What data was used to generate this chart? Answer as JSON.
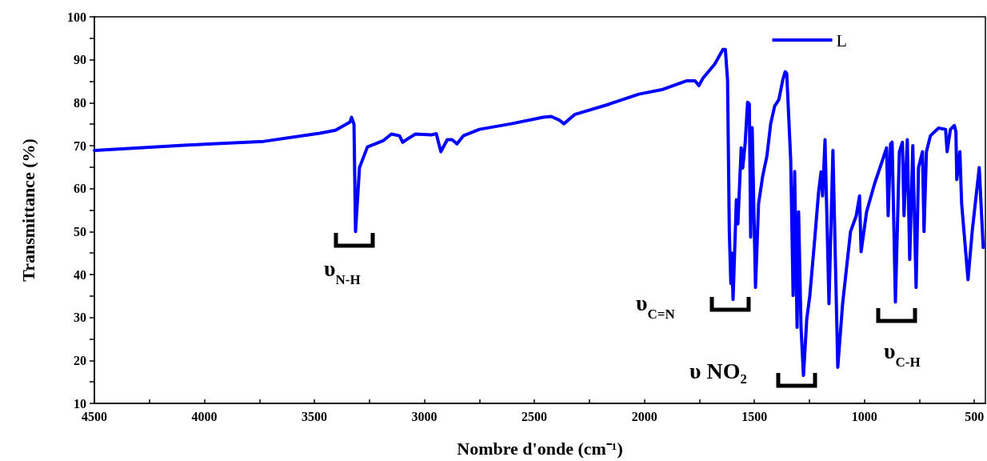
{
  "chart_data": {
    "type": "line",
    "xlabel": "Nombre d'onde (cm⁻¹)",
    "ylabel": "Transmittance (%)",
    "xlim": [
      4500,
      450
    ],
    "ylim": [
      10,
      100
    ],
    "xticks": [
      4500,
      {
        "value": 4250,
        "label": null
      },
      4000,
      {
        "value": 3750,
        "label": null
      },
      3500,
      {
        "value": 3250,
        "label": null
      },
      3000,
      {
        "value": 2750,
        "label": null
      },
      2500,
      {
        "value": 2250,
        "label": null
      },
      2000,
      {
        "value": 1750,
        "label": null
      },
      1500,
      {
        "value": 1250,
        "label": null
      },
      1000,
      {
        "value": 750,
        "label": null
      },
      500
    ],
    "yticks": [
      10,
      {
        "value": 15,
        "label": null
      },
      20,
      {
        "value": 25,
        "label": null
      },
      30,
      {
        "value": 35,
        "label": null
      },
      40,
      {
        "value": 45,
        "label": null
      },
      50,
      {
        "value": 55,
        "label": null
      },
      60,
      {
        "value": 65,
        "label": null
      },
      70,
      {
        "value": 75,
        "label": null
      },
      80,
      {
        "value": 85,
        "label": null
      },
      90,
      {
        "value": 95,
        "label": null
      },
      100
    ],
    "grid": false,
    "legend": "top right",
    "marker": "none",
    "line_style": "solid",
    "series": [
      {
        "name": "L",
        "color": "#0000ff",
        "x": [
          4500,
          4093,
          3730,
          3476,
          3404,
          3338,
          3331,
          3320,
          3313,
          3295,
          3259,
          3186,
          3150,
          3113,
          3099,
          3041,
          2968,
          2946,
          2925,
          2896,
          2874,
          2852,
          2823,
          2750,
          2605,
          2460,
          2424,
          2388,
          2366,
          2315,
          2170,
          2025,
          1916,
          1807,
          1770,
          1752,
          1734,
          1680,
          1643,
          1632,
          1622,
          1614,
          1607,
          1603,
          1597,
          1582,
          1575,
          1560,
          1553,
          1542,
          1531,
          1523,
          1517,
          1510,
          1495,
          1481,
          1462,
          1443,
          1426,
          1408,
          1389,
          1371,
          1360,
          1353,
          1335,
          1324,
          1317,
          1306,
          1299,
          1288,
          1277,
          1262,
          1248,
          1226,
          1208,
          1197,
          1190,
          1179,
          1161,
          1143,
          1121,
          1099,
          1063,
          1037,
          1022,
          1015,
          990,
          954,
          917,
          899,
          892,
          881,
          874,
          859,
          841,
          827,
          820,
          805,
          794,
          780,
          765,
          754,
          736,
          729,
          718,
          700,
          663,
          631,
          624,
          609,
          591,
          584,
          580,
          566,
          558,
          529,
          510,
          478,
          460
        ],
        "values": [
          68.9,
          70.1,
          71.0,
          72.9,
          73.6,
          75.5,
          76.6,
          75.0,
          50.0,
          64.9,
          69.7,
          71.2,
          72.7,
          72.3,
          70.8,
          72.7,
          72.5,
          72.8,
          68.6,
          71.4,
          71.4,
          70.4,
          72.3,
          73.8,
          75.1,
          76.6,
          76.8,
          76.0,
          75.1,
          77.3,
          79.5,
          82.0,
          83.1,
          85.1,
          85.1,
          84.0,
          85.7,
          89.0,
          92.4,
          92.4,
          85.3,
          50.0,
          37.9,
          45.0,
          34.2,
          57.4,
          51.8,
          69.5,
          64.8,
          70.5,
          80.1,
          79.7,
          48.7,
          74.2,
          37.0,
          56.5,
          63.0,
          67.6,
          75.1,
          79.2,
          80.7,
          85.3,
          87.2,
          86.8,
          66.7,
          35.1,
          64.0,
          27.7,
          54.6,
          27.7,
          16.5,
          29.6,
          35.1,
          48.1,
          59.3,
          63.9,
          58.3,
          71.4,
          33.2,
          68.9,
          18.4,
          33.2,
          50.0,
          53.7,
          58.3,
          45.3,
          54.6,
          61.1,
          66.7,
          69.5,
          53.7,
          70.4,
          70.8,
          33.6,
          68.6,
          70.8,
          53.7,
          71.4,
          43.5,
          70.0,
          37.0,
          64.9,
          68.6,
          50.0,
          68.6,
          72.3,
          74.1,
          73.8,
          68.6,
          73.8,
          74.7,
          73.2,
          62.1,
          68.6,
          56.5,
          38.8,
          50.0,
          64.9,
          46.3
        ]
      }
    ],
    "annotations": [
      "υ$_{N-H}$",
      "υ$_{C=N}$",
      "υ NO₂",
      "υ$_{C-H}$"
    ]
  }
}
